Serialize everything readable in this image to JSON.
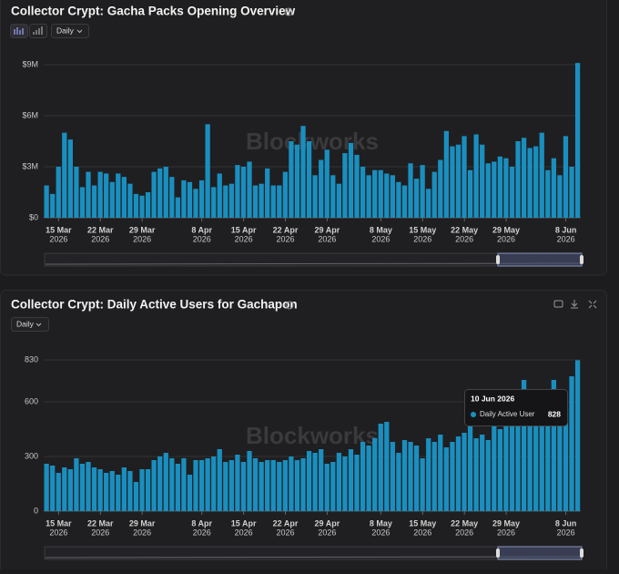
{
  "chart_data": [
    {
      "type": "bar",
      "title": "Collector Crypt: Gacha Packs Opening Overview",
      "interval": "Daily",
      "watermark": "Blockworks",
      "color": "#1a8fbf",
      "categories": [
        "13 Mar 2026",
        "14 Mar 2026",
        "15 Mar 2026",
        "16 Mar 2026",
        "17 Mar 2026",
        "18 Mar 2026",
        "19 Mar 2026",
        "20 Mar 2026",
        "21 Mar 2026",
        "22 Mar 2026",
        "23 Mar 2026",
        "24 Mar 2026",
        "25 Mar 2026",
        "26 Mar 2026",
        "27 Mar 2026",
        "28 Mar 2026",
        "29 Mar 2026",
        "30 Mar 2026",
        "31 Mar 2026",
        "1 Apr 2026",
        "2 Apr 2026",
        "3 Apr 2026",
        "4 Apr 2026",
        "5 Apr 2026",
        "6 Apr 2026",
        "7 Apr 2026",
        "8 Apr 2026",
        "9 Apr 2026",
        "10 Apr 2026",
        "11 Apr 2026",
        "12 Apr 2026",
        "13 Apr 2026",
        "14 Apr 2026",
        "15 Apr 2026",
        "16 Apr 2026",
        "17 Apr 2026",
        "18 Apr 2026",
        "19 Apr 2026",
        "20 Apr 2026",
        "21 Apr 2026",
        "22 Apr 2026",
        "23 Apr 2026",
        "24 Apr 2026",
        "25 Apr 2026",
        "26 Apr 2026",
        "27 Apr 2026",
        "28 Apr 2026",
        "29 Apr 2026",
        "30 Apr 2026",
        "1 May 2026",
        "2 May 2026",
        "3 May 2026",
        "4 May 2026",
        "5 May 2026",
        "6 May 2026",
        "7 May 2026",
        "8 May 2026",
        "9 May 2026",
        "10 May 2026",
        "11 May 2026",
        "12 May 2026",
        "13 May 2026",
        "14 May 2026",
        "15 May 2026",
        "16 May 2026",
        "17 May 2026",
        "18 May 2026",
        "19 May 2026",
        "20 May 2026",
        "21 May 2026",
        "22 May 2026",
        "23 May 2026",
        "24 May 2026",
        "25 May 2026",
        "26 May 2026",
        "27 May 2026",
        "28 May 2026",
        "29 May 2026",
        "30 May 2026",
        "31 May 2026",
        "1 Jun 2026",
        "2 Jun 2026",
        "3 Jun 2026",
        "4 Jun 2026",
        "5 Jun 2026",
        "6 Jun 2026",
        "7 Jun 2026",
        "8 Jun 2026",
        "9 Jun 2026",
        "10 Jun 2026"
      ],
      "values": [
        1900000,
        1400000,
        3000000,
        5000000,
        4600000,
        3000000,
        1800000,
        2700000,
        1900000,
        2700000,
        2600000,
        2100000,
        2600000,
        2400000,
        2000000,
        1400000,
        1300000,
        1500000,
        2700000,
        2900000,
        3000000,
        2400000,
        1200000,
        2200000,
        2100000,
        1700000,
        2200000,
        5500000,
        1800000,
        2600000,
        1900000,
        2000000,
        3100000,
        3000000,
        3300000,
        1900000,
        2000000,
        2900000,
        1900000,
        1900000,
        2700000,
        4500000,
        4300000,
        5400000,
        4500000,
        2500000,
        3400000,
        4000000,
        2500000,
        2000000,
        3800000,
        4400000,
        3700000,
        3000000,
        2500000,
        2800000,
        2800000,
        2600000,
        2500000,
        2100000,
        1900000,
        3200000,
        2300000,
        3100000,
        1700000,
        2700000,
        3400000,
        5100000,
        4200000,
        4300000,
        4800000,
        2800000,
        4900000,
        4300000,
        3200000,
        3300000,
        3600000,
        3500000,
        3000000,
        4500000,
        4700000,
        4100000,
        4200000,
        5000000,
        2800000,
        3500000,
        2500000,
        4800000,
        3000000,
        9100000
      ],
      "ylim": [
        0,
        9300000
      ],
      "yticks": [
        {
          "value": 0,
          "label": "$0"
        },
        {
          "value": 3000000,
          "label": "$3M"
        },
        {
          "value": 6000000,
          "label": "$6M"
        },
        {
          "value": 9000000,
          "label": "$9M"
        }
      ],
      "xticks": [
        {
          "value": "15 Mar 2026",
          "label": "15 Mar",
          "year": "2026"
        },
        {
          "value": "22 Mar 2026",
          "label": "22 Mar",
          "year": "2026"
        },
        {
          "value": "29 Mar 2026",
          "label": "29 Mar",
          "year": "2026"
        },
        {
          "value": "8 Apr 2026",
          "label": "8 Apr",
          "year": "2026"
        },
        {
          "value": "15 Apr 2026",
          "label": "15 Apr",
          "year": "2026"
        },
        {
          "value": "22 Apr 2026",
          "label": "22 Apr",
          "year": "2026"
        },
        {
          "value": "29 Apr 2026",
          "label": "29 Apr",
          "year": "2026"
        },
        {
          "value": "8 May 2026",
          "label": "8 May",
          "year": "2026"
        },
        {
          "value": "15 May 2026",
          "label": "15 May",
          "year": "2026"
        },
        {
          "value": "22 May 2026",
          "label": "22 May",
          "year": "2026"
        },
        {
          "value": "29 May 2026",
          "label": "29 May",
          "year": "2026"
        },
        {
          "value": "8 Jun 2026",
          "label": "8 Jun",
          "year": "2026"
        }
      ],
      "grid": true
    },
    {
      "type": "bar",
      "title": "Collector Crypt: Daily Active Users for Gachapon",
      "interval": "Daily",
      "watermark": "Blockworks",
      "color": "#1a8fbf",
      "categories": [
        "13 Mar 2026",
        "14 Mar 2026",
        "15 Mar 2026",
        "16 Mar 2026",
        "17 Mar 2026",
        "18 Mar 2026",
        "19 Mar 2026",
        "20 Mar 2026",
        "21 Mar 2026",
        "22 Mar 2026",
        "23 Mar 2026",
        "24 Mar 2026",
        "25 Mar 2026",
        "26 Mar 2026",
        "27 Mar 2026",
        "28 Mar 2026",
        "29 Mar 2026",
        "30 Mar 2026",
        "31 Mar 2026",
        "1 Apr 2026",
        "2 Apr 2026",
        "3 Apr 2026",
        "4 Apr 2026",
        "5 Apr 2026",
        "6 Apr 2026",
        "7 Apr 2026",
        "8 Apr 2026",
        "9 Apr 2026",
        "10 Apr 2026",
        "11 Apr 2026",
        "12 Apr 2026",
        "13 Apr 2026",
        "14 Apr 2026",
        "15 Apr 2026",
        "16 Apr 2026",
        "17 Apr 2026",
        "18 Apr 2026",
        "19 Apr 2026",
        "20 Apr 2026",
        "21 Apr 2026",
        "22 Apr 2026",
        "23 Apr 2026",
        "24 Apr 2026",
        "25 Apr 2026",
        "26 Apr 2026",
        "27 Apr 2026",
        "28 Apr 2026",
        "29 Apr 2026",
        "30 Apr 2026",
        "1 May 2026",
        "2 May 2026",
        "3 May 2026",
        "4 May 2026",
        "5 May 2026",
        "6 May 2026",
        "7 May 2026",
        "8 May 2026",
        "9 May 2026",
        "10 May 2026",
        "11 May 2026",
        "12 May 2026",
        "13 May 2026",
        "14 May 2026",
        "15 May 2026",
        "16 May 2026",
        "17 May 2026",
        "18 May 2026",
        "19 May 2026",
        "20 May 2026",
        "21 May 2026",
        "22 May 2026",
        "23 May 2026",
        "24 May 2026",
        "25 May 2026",
        "26 May 2026",
        "27 May 2026",
        "28 May 2026",
        "29 May 2026",
        "30 May 2026",
        "31 May 2026",
        "1 Jun 2026",
        "2 Jun 2026",
        "3 Jun 2026",
        "4 Jun 2026",
        "5 Jun 2026",
        "6 Jun 2026",
        "7 Jun 2026",
        "8 Jun 2026",
        "9 Jun 2026",
        "10 Jun 2026"
      ],
      "series": [
        {
          "name": "Daily Active User",
          "color": "#1a8fbf",
          "values": [
            260,
            250,
            210,
            240,
            230,
            290,
            260,
            270,
            240,
            230,
            210,
            220,
            200,
            240,
            220,
            160,
            230,
            230,
            280,
            300,
            320,
            290,
            260,
            290,
            200,
            280,
            280,
            290,
            300,
            340,
            270,
            280,
            310,
            270,
            330,
            290,
            270,
            280,
            280,
            270,
            280,
            300,
            280,
            290,
            330,
            320,
            340,
            260,
            270,
            320,
            300,
            340,
            310,
            380,
            360,
            400,
            480,
            490,
            380,
            320,
            390,
            380,
            360,
            290,
            400,
            380,
            420,
            350,
            380,
            410,
            430,
            470,
            400,
            420,
            390,
            510,
            450,
            470,
            480,
            520,
            720,
            500,
            550,
            580,
            600,
            720,
            630,
            570,
            740,
            828
          ]
        }
      ],
      "ylim": [
        0,
        830
      ],
      "yticks": [
        0,
        300,
        600,
        830
      ],
      "xticks": [
        {
          "value": "15 Mar 2026",
          "label": "15 Mar",
          "year": "2026"
        },
        {
          "value": "22 Mar 2026",
          "label": "22 Mar",
          "year": "2026"
        },
        {
          "value": "29 Mar 2026",
          "label": "29 Mar",
          "year": "2026"
        },
        {
          "value": "8 Apr 2026",
          "label": "8 Apr",
          "year": "2026"
        },
        {
          "value": "15 Apr 2026",
          "label": "15 Apr",
          "year": "2026"
        },
        {
          "value": "22 Apr 2026",
          "label": "22 Apr",
          "year": "2026"
        },
        {
          "value": "29 Apr 2026",
          "label": "29 Apr",
          "year": "2026"
        },
        {
          "value": "8 May 2026",
          "label": "8 May",
          "year": "2026"
        },
        {
          "value": "15 May 2026",
          "label": "15 May",
          "year": "2026"
        },
        {
          "value": "22 May 2026",
          "label": "22 May",
          "year": "2026"
        },
        {
          "value": "29 May 2026",
          "label": "29 May",
          "year": "2026"
        },
        {
          "value": "8 Jun 2026",
          "label": "8 Jun",
          "year": "2026"
        }
      ],
      "grid": true,
      "tooltip": {
        "date": "10 Jun 2026",
        "series": "Daily Active User",
        "value": 828
      }
    }
  ]
}
